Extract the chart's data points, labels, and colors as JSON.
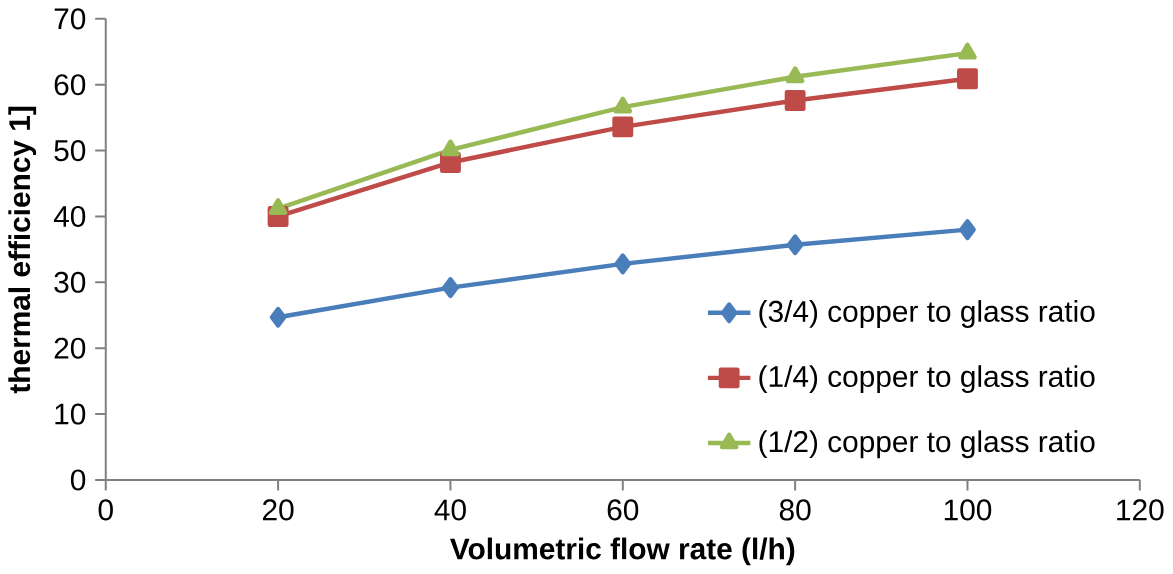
{
  "chart_data": {
    "type": "line",
    "xlabel": "Volumetric flow rate (l/h)",
    "ylabel": "thermal efficiency 1]",
    "xlim": [
      0,
      120
    ],
    "xticks": [
      0,
      20,
      40,
      60,
      80,
      100,
      120
    ],
    "ylim": [
      0,
      70
    ],
    "yticks": [
      0,
      10,
      20,
      30,
      40,
      50,
      60,
      70
    ],
    "x": [
      20,
      40,
      60,
      80,
      100
    ],
    "legend": "bottom right",
    "grid": false,
    "series": [
      {
        "name": "(3/4) copper to glass ratio",
        "color": "#4a7ebb",
        "marker": "diamond",
        "values": [
          24.7,
          29.2,
          32.8,
          35.7,
          38.0
        ]
      },
      {
        "name": "(1/4) copper to glass ratio",
        "color": "#be4b48",
        "marker": "square",
        "values": [
          40.0,
          48.2,
          53.6,
          57.6,
          60.9
        ]
      },
      {
        "name": "(1/2) copper to glass ratio",
        "color": "#98b954",
        "marker": "triangle",
        "values": [
          41.2,
          50.1,
          56.6,
          61.2,
          64.8
        ]
      }
    ]
  }
}
